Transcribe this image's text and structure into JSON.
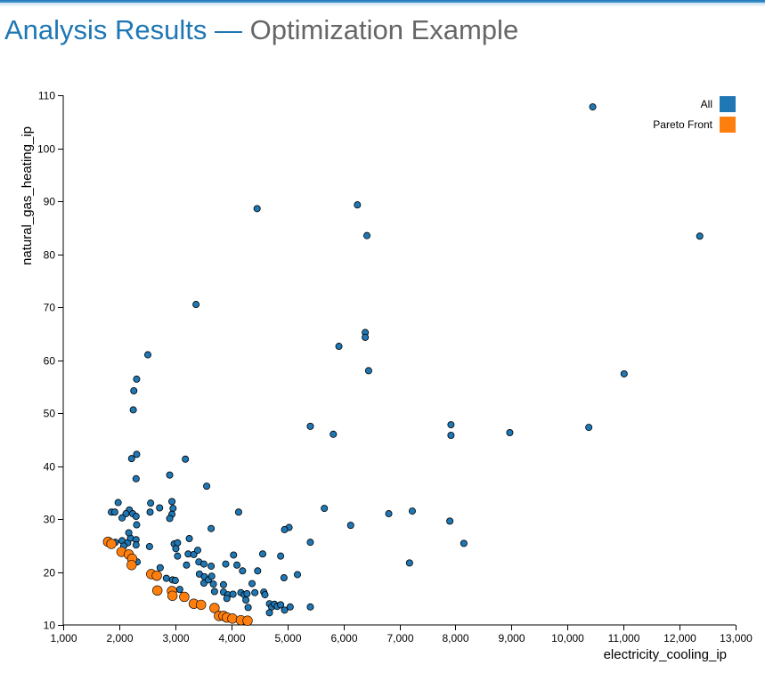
{
  "page": {
    "title_main": "Analysis Results",
    "title_sep": "—",
    "title_sub": "Optimization Example"
  },
  "colors": {
    "all": "#1f77b4",
    "pareto": "#ff7f0e",
    "stroke": "#000000",
    "title": "#1f77b4",
    "subtitle": "#666666"
  },
  "chart_data": {
    "type": "scatter",
    "xlabel": "electricity_cooling_ip",
    "ylabel": "natural_gas_heating_ip",
    "xlim": [
      1000,
      13000
    ],
    "ylim": [
      10,
      110
    ],
    "xticks": [
      1000,
      2000,
      3000,
      4000,
      5000,
      6000,
      7000,
      8000,
      9000,
      10000,
      11000,
      12000,
      13000
    ],
    "xtick_labels": [
      "1,000",
      "2,000",
      "3,000",
      "4,000",
      "5,000",
      "6,000",
      "7,000",
      "8,000",
      "9,000",
      "10,000",
      "11,000",
      "12,000",
      "13,000"
    ],
    "yticks": [
      10,
      20,
      30,
      40,
      50,
      60,
      70,
      80,
      90,
      100,
      110
    ],
    "ytick_labels": [
      "10",
      "20",
      "30",
      "40",
      "50",
      "60",
      "70",
      "80",
      "90",
      "100",
      "110"
    ],
    "grid": false,
    "legend": {
      "placement": "top-right",
      "entries": [
        "All",
        "Pareto Front"
      ]
    },
    "series": [
      {
        "name": "All",
        "color": "#1f77b4",
        "points": [
          [
            10450,
            107.8
          ],
          [
            4460,
            88.6
          ],
          [
            6250,
            89.3
          ],
          [
            6420,
            83.5
          ],
          [
            12360,
            83.4
          ],
          [
            3370,
            70.5
          ],
          [
            6390,
            65.2
          ],
          [
            6390,
            64.3
          ],
          [
            5920,
            62.6
          ],
          [
            6450,
            58.0
          ],
          [
            11010,
            57.4
          ],
          [
            2510,
            61.0
          ],
          [
            2310,
            56.4
          ],
          [
            2260,
            54.2
          ],
          [
            2250,
            50.6
          ],
          [
            5410,
            47.5
          ],
          [
            5820,
            46.0
          ],
          [
            7920,
            47.8
          ],
          [
            7920,
            45.8
          ],
          [
            8970,
            46.3
          ],
          [
            10380,
            47.3
          ],
          [
            2310,
            42.2
          ],
          [
            2220,
            41.4
          ],
          [
            3180,
            41.3
          ],
          [
            2900,
            38.3
          ],
          [
            2300,
            37.6
          ],
          [
            3560,
            36.2
          ],
          [
            1860,
            31.3
          ],
          [
            1920,
            31.3
          ],
          [
            1980,
            33.1
          ],
          [
            2180,
            31.7
          ],
          [
            2120,
            31.0
          ],
          [
            2240,
            31.0
          ],
          [
            2300,
            30.5
          ],
          [
            2050,
            30.2
          ],
          [
            2560,
            33.0
          ],
          [
            2550,
            31.3
          ],
          [
            2720,
            32.1
          ],
          [
            2940,
            33.3
          ],
          [
            2960,
            32.0
          ],
          [
            2940,
            30.9
          ],
          [
            2900,
            30.1
          ],
          [
            4130,
            31.3
          ],
          [
            5030,
            28.4
          ],
          [
            4950,
            28.0
          ],
          [
            5660,
            32.0
          ],
          [
            6130,
            28.8
          ],
          [
            6810,
            31.0
          ],
          [
            7230,
            31.5
          ],
          [
            7900,
            29.6
          ],
          [
            8150,
            25.4
          ],
          [
            1930,
            25.6
          ],
          [
            2050,
            25.9
          ],
          [
            2150,
            25.5
          ],
          [
            2080,
            24.9
          ],
          [
            2200,
            26.4
          ],
          [
            2300,
            26.1
          ],
          [
            2300,
            25.1
          ],
          [
            2170,
            27.4
          ],
          [
            2310,
            28.9
          ],
          [
            2540,
            24.8
          ],
          [
            2320,
            21.9
          ],
          [
            2980,
            25.3
          ],
          [
            3040,
            25.5
          ],
          [
            3010,
            24.4
          ],
          [
            3250,
            26.3
          ],
          [
            3230,
            23.4
          ],
          [
            3330,
            23.3
          ],
          [
            3040,
            23.0
          ],
          [
            3200,
            21.3
          ],
          [
            3400,
            24.1
          ],
          [
            3420,
            21.9
          ],
          [
            3510,
            21.5
          ],
          [
            3640,
            21.1
          ],
          [
            3640,
            28.2
          ],
          [
            3900,
            21.5
          ],
          [
            4040,
            23.2
          ],
          [
            4100,
            21.3
          ],
          [
            4200,
            20.2
          ],
          [
            4560,
            23.4
          ],
          [
            4880,
            23.0
          ],
          [
            5410,
            25.6
          ],
          [
            4470,
            20.2
          ],
          [
            2730,
            20.8
          ],
          [
            2840,
            18.8
          ],
          [
            2950,
            18.5
          ],
          [
            3000,
            18.4
          ],
          [
            3080,
            16.7
          ],
          [
            3430,
            19.6
          ],
          [
            3520,
            19.1
          ],
          [
            3510,
            17.9
          ],
          [
            3590,
            18.5
          ],
          [
            3650,
            19.2
          ],
          [
            3680,
            17.7
          ],
          [
            3860,
            17.6
          ],
          [
            3860,
            16.2
          ],
          [
            3940,
            15.7
          ],
          [
            3920,
            15.0
          ],
          [
            4030,
            15.8
          ],
          [
            4170,
            16.1
          ],
          [
            4230,
            15.7
          ],
          [
            4280,
            15.9
          ],
          [
            4370,
            17.8
          ],
          [
            4260,
            14.7
          ],
          [
            4420,
            16.1
          ],
          [
            4580,
            16.2
          ],
          [
            4600,
            15.7
          ],
          [
            4940,
            18.9
          ],
          [
            5180,
            19.5
          ],
          [
            4680,
            14.0
          ],
          [
            4720,
            13.4
          ],
          [
            4770,
            13.9
          ],
          [
            4820,
            13.5
          ],
          [
            4880,
            13.8
          ],
          [
            4950,
            12.8
          ],
          [
            5050,
            13.4
          ],
          [
            4680,
            12.3
          ],
          [
            5410,
            13.4
          ],
          [
            7180,
            21.7
          ],
          [
            4300,
            13.3
          ],
          [
            3700,
            16.3
          ]
        ]
      },
      {
        "name": "Pareto Front",
        "color": "#ff7f0e",
        "points": [
          [
            1800,
            25.7
          ],
          [
            1860,
            25.3
          ],
          [
            2040,
            23.8
          ],
          [
            2170,
            23.3
          ],
          [
            2230,
            22.5
          ],
          [
            2220,
            21.3
          ],
          [
            2570,
            19.6
          ],
          [
            2670,
            19.3
          ],
          [
            2680,
            16.5
          ],
          [
            2940,
            16.4
          ],
          [
            2950,
            15.5
          ],
          [
            3160,
            15.3
          ],
          [
            3330,
            14.0
          ],
          [
            3460,
            13.8
          ],
          [
            3700,
            13.2
          ],
          [
            3780,
            11.7
          ],
          [
            3860,
            11.7
          ],
          [
            3920,
            11.4
          ],
          [
            4020,
            11.2
          ],
          [
            4170,
            10.9
          ],
          [
            4290,
            10.8
          ]
        ]
      }
    ]
  }
}
